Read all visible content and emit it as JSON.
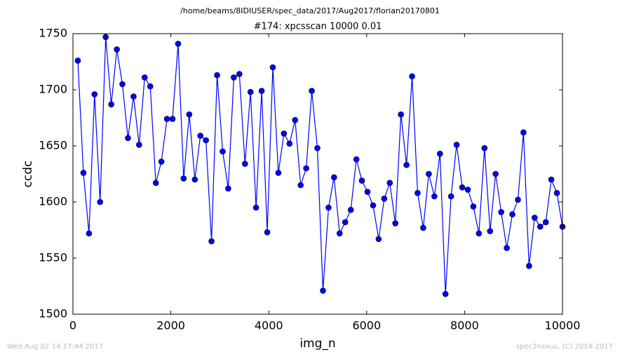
{
  "chart_data": {
    "type": "line",
    "header": "/home/beams/8IDIUSER/spec_data/2017/Aug2017/florian20170801",
    "title": "#174: xpcsscan 10000 0.01",
    "xlabel": "img_n",
    "ylabel": "ccdc",
    "footer_left": "Wed Aug 02 14:17:44 2017",
    "footer_right": "spec2nexus, (C) 2014-2017",
    "x": [
      100,
      214,
      328,
      441,
      555,
      669,
      783,
      897,
      1010,
      1124,
      1238,
      1352,
      1465,
      1579,
      1693,
      1807,
      1921,
      2034,
      2148,
      2262,
      2376,
      2490,
      2603,
      2717,
      2831,
      2945,
      3059,
      3172,
      3286,
      3400,
      3514,
      3627,
      3741,
      3855,
      3969,
      4083,
      4196,
      4310,
      4424,
      4538,
      4652,
      4765,
      4879,
      4993,
      5107,
      5221,
      5334,
      5448,
      5562,
      5676,
      5790,
      5903,
      6017,
      6131,
      6245,
      6359,
      6472,
      6586,
      6700,
      6814,
      6928,
      7041,
      7155,
      7269,
      7383,
      7497,
      7610,
      7724,
      7838,
      7952,
      8066,
      8179,
      8293,
      8407,
      8521,
      8634,
      8748,
      8862,
      8976,
      9090,
      9203,
      9317,
      9431,
      9545,
      9659,
      9772,
      9886,
      10000
    ],
    "series": [
      {
        "name": "ccdc",
        "color": "#0000ff",
        "values": [
          1726,
          1626,
          1572,
          1696,
          1600,
          1747,
          1687,
          1736,
          1705,
          1657,
          1694,
          1651,
          1711,
          1703,
          1617,
          1636,
          1674,
          1674,
          1741,
          1621,
          1678,
          1620,
          1659,
          1655,
          1565,
          1713,
          1645,
          1612,
          1711,
          1714,
          1634,
          1698,
          1595,
          1699,
          1573,
          1720,
          1626,
          1661,
          1652,
          1673,
          1615,
          1630,
          1699,
          1648,
          1521,
          1595,
          1622,
          1572,
          1582,
          1593,
          1638,
          1619,
          1609,
          1597,
          1567,
          1603,
          1617,
          1581,
          1678,
          1633,
          1712,
          1608,
          1577,
          1625,
          1605,
          1643,
          1518,
          1605,
          1651,
          1613,
          1611,
          1596,
          1572,
          1648,
          1574,
          1625,
          1591,
          1559,
          1589,
          1602,
          1662,
          1543,
          1586,
          1578,
          1582,
          1620,
          1608,
          1578
        ]
      }
    ],
    "xlim": [
      0,
      10000
    ],
    "xticks": [
      0,
      2000,
      4000,
      6000,
      8000,
      10000
    ],
    "ylim": [
      1500,
      1750
    ],
    "yticks": [
      1500,
      1550,
      1600,
      1650,
      1700,
      1750
    ],
    "grid": false
  }
}
